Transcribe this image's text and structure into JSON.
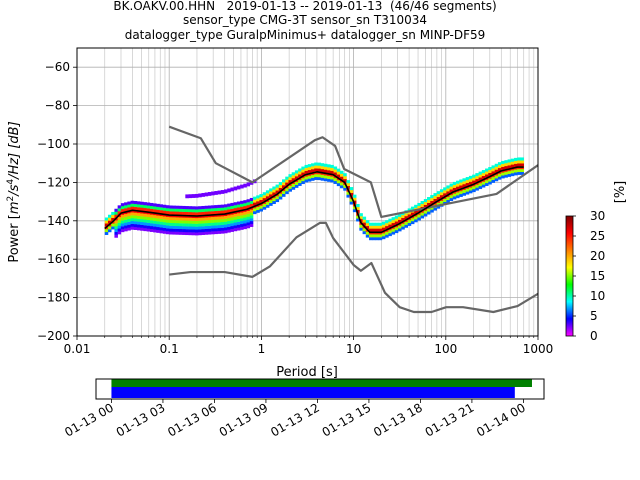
{
  "chart_data": [
    {
      "type": "heatmap",
      "chart_kind": "probabilistic power spectral density (PPSD)",
      "title_lines": [
        "BK.OAKV.00.HHN   2019-01-13 -- 2019-01-13  (46/46 segments)",
        "sensor_type CMG-3T sensor_sn T310034",
        "datalogger_type GuralpMinimus+ datalogger_sn MINP-DF59"
      ],
      "xlabel": "Period [s]",
      "ylabel_parts": {
        "prefix": "Power [",
        "m": "m",
        "sup2": "2",
        "slash_s": "/s",
        "sup4": "4",
        "rest": "/Hz] [dB]"
      },
      "x_scale": "log",
      "xlim": [
        0.01,
        1000
      ],
      "ylim": [
        -200,
        -50
      ],
      "x_ticks": [
        {
          "v": 0.01,
          "label": "0.01"
        },
        {
          "v": 0.1,
          "label": "0.1"
        },
        {
          "v": 1,
          "label": "1"
        },
        {
          "v": 10,
          "label": "10"
        },
        {
          "v": 100,
          "label": "100"
        },
        {
          "v": 1000,
          "label": "1000"
        }
      ],
      "y_ticks": [
        -60,
        -80,
        -100,
        -120,
        -140,
        -160,
        -180,
        -200
      ],
      "y_tick_labels": [
        "−60",
        "−80",
        "−100",
        "−120",
        "−140",
        "−160",
        "−180",
        "−200"
      ],
      "grid": true,
      "colorbar": {
        "label": "[%]",
        "range": [
          0,
          30
        ],
        "ticks": [
          0,
          5,
          10,
          15,
          20,
          25,
          30
        ],
        "tick_labels": [
          "0",
          "5",
          "10",
          "15",
          "20",
          "25",
          "30"
        ],
        "colors": [
          "#ff00ff",
          "#0000ff",
          "#00ffff",
          "#00ff00",
          "#ffff00",
          "#ff7f00",
          "#ff0000",
          "#800000"
        ]
      },
      "series": [
        {
          "role": "high-noise-model",
          "color": "#666666",
          "points": [
            [
              0.1,
              -91
            ],
            [
              0.22,
              -97
            ],
            [
              0.32,
              -110
            ],
            [
              0.8,
              -120
            ],
            [
              3.8,
              -98
            ],
            [
              4.6,
              -96.5
            ],
            [
              6.3,
              -101
            ],
            [
              7.9,
              -113
            ],
            [
              15.4,
              -120
            ],
            [
              20,
              -138
            ],
            [
              354.8,
              -126
            ],
            [
              1000,
              -111
            ]
          ]
        },
        {
          "role": "low-noise-model",
          "color": "#666666",
          "points": [
            [
              0.1,
              -168
            ],
            [
              0.17,
              -166.7
            ],
            [
              0.4,
              -166.7
            ],
            [
              0.8,
              -169.2
            ],
            [
              1.24,
              -163.7
            ],
            [
              2.4,
              -148.6
            ],
            [
              4.3,
              -141.1
            ],
            [
              5,
              -141.1
            ],
            [
              6,
              -149
            ],
            [
              10,
              -163
            ],
            [
              12,
              -166
            ],
            [
              15.6,
              -162
            ],
            [
              21.9,
              -177.5
            ],
            [
              31.6,
              -185
            ],
            [
              45,
              -187.5
            ],
            [
              70,
              -187.5
            ],
            [
              101,
              -185
            ],
            [
              154,
              -185
            ],
            [
              328,
              -187.5
            ],
            [
              600,
              -184.4
            ],
            [
              1000,
              -178
            ]
          ]
        },
        {
          "role": "mode",
          "color": "#000000",
          "points": [
            [
              0.02,
              -144
            ],
            [
              0.025,
              -140
            ],
            [
              0.03,
              -136
            ],
            [
              0.04,
              -134.5
            ],
            [
              0.06,
              -135.5
            ],
            [
              0.1,
              -137
            ],
            [
              0.2,
              -137.5
            ],
            [
              0.4,
              -136.5
            ],
            [
              0.7,
              -134
            ],
            [
              1,
              -131
            ],
            [
              1.5,
              -126
            ],
            [
              2,
              -121
            ],
            [
              3,
              -116
            ],
            [
              4,
              -114.5
            ],
            [
              6,
              -116
            ],
            [
              8,
              -120
            ],
            [
              10,
              -130
            ],
            [
              12,
              -141
            ],
            [
              15,
              -146
            ],
            [
              20,
              -146
            ],
            [
              30,
              -142
            ],
            [
              50,
              -136
            ],
            [
              80,
              -130
            ],
            [
              120,
              -125
            ],
            [
              200,
              -121
            ],
            [
              300,
              -117
            ],
            [
              400,
              -114
            ],
            [
              600,
              -112
            ],
            [
              700,
              -112
            ]
          ]
        }
      ]
    },
    {
      "type": "bar",
      "chart_kind": "data coverage timeline",
      "x_tick_labels": [
        "01-13 00",
        "01-13 03",
        "01-13 06",
        "01-13 09",
        "01-13 12",
        "01-13 15",
        "01-13 18",
        "01-13 21",
        "01-14 00"
      ],
      "xlim_hours": [
        -0.9,
        25.2
      ],
      "bars": [
        {
          "role": "psd coverage",
          "color": "#008000",
          "start_hour": 0,
          "end_hour": 24.5
        },
        {
          "role": "data coverage",
          "color": "#0000ff",
          "start_hour": 0,
          "end_hour": 23.5
        }
      ]
    }
  ]
}
